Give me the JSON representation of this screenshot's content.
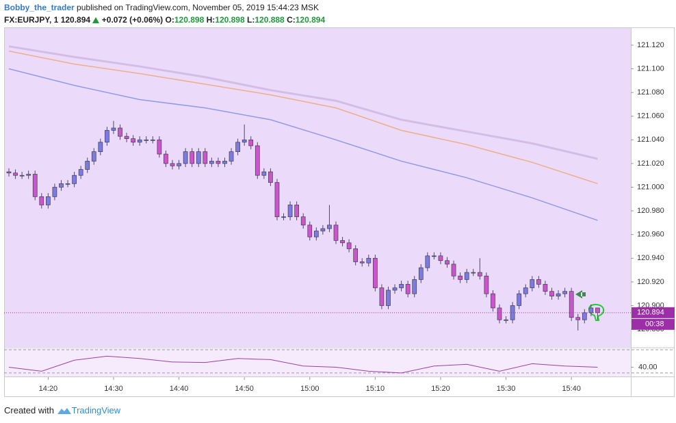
{
  "header": {
    "author": "Bobby_the_trader",
    "published": "published on TradingView.com, November 05, 2019 15:44:23 MSK",
    "symbol": "FX:EURJPY, 1",
    "last": "120.894",
    "change": "+0.072 (+0.06%)",
    "quote": [
      {
        "label": "O:",
        "value": "120.898"
      },
      {
        "label": "H:",
        "value": "120.898"
      },
      {
        "label": "L:",
        "value": "120.888"
      },
      {
        "label": "C:",
        "value": "120.894"
      }
    ]
  },
  "chart_data": {
    "type": "candlestick",
    "categories": [
      null,
      null,
      null,
      null,
      null,
      null,
      "14:20",
      null,
      null,
      null,
      null,
      null,
      null,
      null,
      null,
      null,
      "14:30",
      null,
      null,
      null,
      null,
      null,
      null,
      null,
      null,
      null,
      "14:40",
      null,
      null,
      null,
      null,
      null,
      null,
      null,
      null,
      null,
      "14:50",
      null,
      null,
      null,
      null,
      null,
      null,
      null,
      null,
      null,
      "15:00",
      null,
      null,
      null,
      null,
      null,
      null,
      null,
      null,
      null,
      "15:10",
      null,
      null,
      null,
      null,
      null,
      null,
      null,
      null,
      null,
      "15:20",
      null,
      null,
      null,
      null,
      null,
      null,
      null,
      null,
      null,
      "15:30",
      null,
      null,
      null,
      null,
      null,
      null,
      null,
      null,
      null,
      "15:40",
      null,
      null,
      null,
      null
    ],
    "open": [
      121.013,
      121.012,
      121.01,
      121.01,
      121.011,
      120.992,
      120.985,
      120.992,
      121.0,
      121.003,
      121.003,
      121.01,
      121.015,
      121.022,
      121.03,
      121.038,
      121.048,
      121.05,
      121.043,
      121.041,
      121.038,
      121.04,
      121.04,
      121.04,
      121.028,
      121.02,
      121.018,
      121.02,
      121.03,
      121.02,
      121.03,
      121.02,
      121.022,
      121.02,
      121.022,
      121.03,
      121.038,
      121.04,
      121.035,
      121.01,
      121.013,
      121.004,
      120.975,
      120.975,
      120.985,
      120.975,
      120.968,
      120.958,
      120.963,
      120.965,
      120.968,
      120.955,
      120.953,
      120.948,
      120.937,
      120.936,
      120.94,
      120.915,
      120.9,
      120.913,
      120.915,
      120.918,
      120.91,
      120.922,
      120.932,
      120.942,
      120.942,
      120.938,
      120.935,
      120.925,
      120.922,
      120.928,
      120.928,
      120.925,
      120.91,
      120.898,
      120.888,
      120.888,
      120.9,
      120.91,
      120.915,
      120.922,
      120.918,
      120.912,
      120.908,
      120.91,
      120.912,
      120.89,
      120.888,
      120.894,
      120.898
    ],
    "high": [
      121.016,
      121.015,
      121.013,
      121.014,
      121.014,
      120.995,
      120.995,
      121.003,
      121.006,
      121.006,
      121.013,
      121.018,
      121.025,
      121.033,
      121.041,
      121.051,
      121.056,
      121.053,
      121.046,
      121.044,
      121.043,
      121.043,
      121.043,
      121.043,
      121.031,
      121.023,
      121.023,
      121.033,
      121.033,
      121.033,
      121.033,
      121.025,
      121.025,
      121.025,
      121.033,
      121.041,
      121.053,
      121.043,
      121.038,
      121.016,
      121.016,
      121.007,
      120.978,
      120.988,
      120.988,
      120.978,
      120.971,
      120.966,
      120.968,
      120.985,
      120.971,
      120.958,
      120.956,
      120.951,
      120.94,
      120.943,
      120.943,
      120.918,
      120.916,
      120.918,
      120.921,
      120.921,
      120.925,
      120.935,
      120.945,
      120.945,
      120.945,
      120.941,
      120.938,
      120.928,
      120.931,
      120.931,
      120.94,
      120.928,
      120.913,
      120.901,
      120.891,
      120.903,
      120.913,
      120.918,
      120.925,
      120.925,
      120.921,
      120.915,
      120.913,
      120.915,
      120.915,
      120.893,
      120.897,
      120.901,
      120.898
    ],
    "low": [
      121.009,
      121.007,
      121.007,
      121.007,
      120.989,
      120.982,
      120.982,
      120.989,
      120.997,
      121.0,
      121.0,
      121.007,
      121.012,
      121.019,
      121.027,
      121.035,
      121.045,
      121.04,
      121.038,
      121.035,
      121.035,
      121.037,
      121.037,
      121.025,
      121.017,
      121.015,
      121.015,
      121.017,
      121.017,
      121.017,
      121.017,
      121.017,
      121.017,
      121.017,
      121.019,
      121.027,
      121.035,
      121.032,
      121.007,
      121.007,
      121.001,
      120.972,
      120.972,
      120.972,
      120.972,
      120.965,
      120.955,
      120.955,
      120.96,
      120.962,
      120.952,
      120.95,
      120.945,
      120.934,
      120.933,
      120.933,
      120.912,
      120.897,
      120.897,
      120.91,
      120.912,
      120.907,
      120.907,
      120.919,
      120.929,
      120.939,
      120.935,
      120.932,
      120.922,
      120.919,
      120.919,
      120.925,
      120.922,
      120.907,
      120.895,
      120.885,
      120.885,
      120.885,
      120.897,
      120.907,
      120.912,
      120.915,
      120.909,
      120.905,
      120.905,
      120.907,
      120.887,
      120.879,
      120.885,
      120.891,
      120.888
    ],
    "close": [
      121.012,
      121.01,
      121.01,
      121.011,
      120.992,
      120.985,
      120.992,
      121.0,
      121.003,
      121.003,
      121.01,
      121.015,
      121.022,
      121.03,
      121.038,
      121.048,
      121.05,
      121.043,
      121.041,
      121.038,
      121.04,
      121.04,
      121.04,
      121.028,
      121.02,
      121.018,
      121.02,
      121.03,
      121.02,
      121.03,
      121.02,
      121.022,
      121.02,
      121.022,
      121.03,
      121.038,
      121.04,
      121.035,
      121.01,
      121.013,
      121.004,
      120.975,
      120.975,
      120.985,
      120.975,
      120.968,
      120.958,
      120.963,
      120.965,
      120.968,
      120.955,
      120.953,
      120.948,
      120.937,
      120.936,
      120.94,
      120.915,
      120.9,
      120.913,
      120.915,
      120.918,
      120.91,
      120.922,
      120.932,
      120.942,
      120.942,
      120.938,
      120.935,
      120.925,
      120.922,
      120.928,
      120.928,
      120.925,
      120.91,
      120.898,
      120.888,
      120.888,
      120.9,
      120.91,
      120.915,
      120.922,
      120.918,
      120.912,
      120.908,
      120.91,
      120.912,
      120.89,
      120.888,
      120.894,
      120.898,
      120.894
    ],
    "up_color": "#7b7be0",
    "down_color": "#cc55cc",
    "ylim": [
      120.865,
      121.135
    ],
    "yticks": [
      {
        "value": 120.88,
        "label": "120.880"
      },
      {
        "value": 120.9,
        "label": "120.900"
      },
      {
        "value": 120.92,
        "label": "120.920"
      },
      {
        "value": 120.94,
        "label": "120.940"
      },
      {
        "value": 120.96,
        "label": "120.960"
      },
      {
        "value": 120.98,
        "label": "120.980"
      },
      {
        "value": 121.0,
        "label": "121.000"
      },
      {
        "value": 121.02,
        "label": "121.020"
      },
      {
        "value": 121.04,
        "label": "121.040"
      },
      {
        "value": 121.06,
        "label": "121.060"
      },
      {
        "value": 121.08,
        "label": "121.080"
      },
      {
        "value": 121.1,
        "label": "121.100"
      },
      {
        "value": 121.12,
        "label": "121.120"
      }
    ],
    "last_price": 120.894,
    "countdown": "00:38",
    "last_color": "#9c2fa8",
    "overlays": [
      {
        "color": "#d3bde6",
        "x": [
          0,
          10,
          20,
          30,
          40,
          50,
          60,
          70,
          80,
          90
        ],
        "values": [
          121.119,
          121.11,
          121.102,
          121.093,
          121.082,
          121.073,
          121.057,
          121.047,
          121.037,
          121.024
        ]
      },
      {
        "color": "#edae8a",
        "x": [
          0,
          10,
          20,
          30,
          40,
          50,
          60,
          70,
          80,
          90
        ],
        "values": [
          121.115,
          121.104,
          121.096,
          121.087,
          121.078,
          121.067,
          121.048,
          121.036,
          121.021,
          121.003
        ]
      },
      {
        "color": "#8f9be8",
        "x": [
          0,
          10,
          20,
          30,
          40,
          50,
          60,
          70,
          80,
          90
        ],
        "values": [
          121.1,
          121.086,
          121.074,
          121.067,
          121.057,
          121.04,
          121.022,
          121.008,
          120.991,
          120.972
        ]
      }
    ],
    "indicator": {
      "color": "#9c3fa8",
      "ylim": [
        24,
        72.4
      ],
      "yticks": [
        {
          "value": 40,
          "label": "40.00"
        }
      ],
      "levels": [
        30,
        70
      ],
      "x": [
        0,
        5,
        10,
        15,
        20,
        25,
        30,
        35,
        40,
        45,
        50,
        55,
        60,
        65,
        70,
        75,
        80,
        85,
        90
      ],
      "values": [
        40,
        33,
        52,
        59,
        55,
        49,
        48,
        55,
        53,
        42,
        40,
        33,
        30,
        42,
        45,
        33,
        46,
        42,
        40
      ]
    }
  },
  "footer": {
    "text": "Created with",
    "brand": "TradingView"
  }
}
